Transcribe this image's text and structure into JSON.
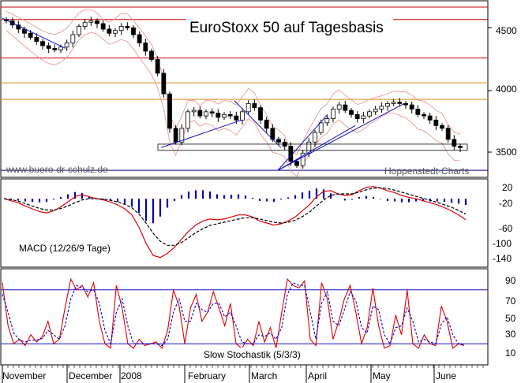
{
  "chart_data": [
    {
      "type": "candlestick",
      "title": "EuroStoxx 50 auf Tagesbasis",
      "y_ticks": [
        "4500",
        "4000",
        "3500"
      ],
      "ylim": [
        3350,
        4620
      ],
      "watermark_left": "www.buero-dr-schulz.de",
      "watermark_right": "Hoppenstedt-Charts",
      "horizontal_levels": [
        {
          "value": 4580,
          "color": "#c80000"
        },
        {
          "value": 4490,
          "color": "#c80000"
        },
        {
          "value": 4210,
          "color": "#c80000"
        },
        {
          "value": 4030,
          "color": "#e08a1e"
        },
        {
          "value": 3910,
          "color": "#e08a1e"
        },
        {
          "value": 3395,
          "color": "#000080"
        }
      ],
      "x_labels": [
        "November",
        "December",
        "2008",
        "February",
        "March",
        "April",
        "May",
        "June"
      ],
      "close_approx": [
        4480,
        4450,
        4420,
        4390,
        4360,
        4330,
        4300,
        4280,
        4270,
        4290,
        4320,
        4380,
        4440,
        4470,
        4480,
        4460,
        4420,
        4390,
        4410,
        4440,
        4430,
        4380,
        4320,
        4260,
        4200,
        4100,
        3950,
        3700,
        3600,
        3700,
        3820,
        3830,
        3790,
        3820,
        3810,
        3780,
        3800,
        3790,
        3760,
        3820,
        3880,
        3850,
        3760,
        3700,
        3620,
        3600,
        3570,
        3460,
        3430,
        3520,
        3600,
        3670,
        3740,
        3770,
        3840,
        3870,
        3830,
        3800,
        3770,
        3790,
        3820,
        3840,
        3860,
        3880,
        3890,
        3880,
        3870,
        3840,
        3800,
        3790,
        3760,
        3720,
        3700,
        3620,
        3570,
        3560
      ]
    },
    {
      "type": "line",
      "label": "MACD (12/26/9 Tage)",
      "y_ticks": [
        "20",
        "-20",
        "-60",
        "-100",
        "-140"
      ],
      "ylim": [
        -165,
        45
      ],
      "series": [
        {
          "color": "#e00000",
          "values": [
            0,
            -5,
            -10,
            -18,
            -25,
            -32,
            -35,
            -30,
            -20,
            -8,
            5,
            10,
            5,
            0,
            -3,
            -8,
            -15,
            -25,
            -40,
            -70,
            -110,
            -140,
            -145,
            -135,
            -120,
            -100,
            -80,
            -65,
            -55,
            -50,
            -52,
            -50,
            -45,
            -40,
            -40,
            -45,
            -55,
            -60,
            -65,
            -62,
            -55,
            -45,
            -30,
            -15,
            5,
            18,
            20,
            12,
            8,
            10,
            20,
            28,
            30,
            26,
            20,
            15,
            8,
            3,
            0,
            -5,
            -10,
            -15,
            -22,
            -30,
            -40,
            -52
          ]
        },
        {
          "color": "#000000",
          "values": [
            0,
            -2,
            -6,
            -12,
            -18,
            -24,
            -28,
            -28,
            -24,
            -18,
            -10,
            -3,
            0,
            0,
            -1,
            -4,
            -8,
            -14,
            -22,
            -38,
            -60,
            -85,
            -105,
            -115,
            -115,
            -108,
            -96,
            -84,
            -74,
            -66,
            -62,
            -58,
            -54,
            -50,
            -47,
            -47,
            -50,
            -54,
            -58,
            -60,
            -58,
            -53,
            -44,
            -33,
            -18,
            -3,
            8,
            12,
            12,
            12,
            16,
            22,
            26,
            27,
            25,
            21,
            16,
            11,
            6,
            1,
            -4,
            -9,
            -15,
            -21,
            -29,
            -38
          ]
        }
      ],
      "histogram_color": "#0000b0"
    },
    {
      "type": "line",
      "label": "Slow Stochastik (5/3/3)",
      "y_ticks": [
        "90",
        "70",
        "50",
        "30",
        "10"
      ],
      "ylim": [
        0,
        100
      ],
      "reference_lines": [
        80,
        20
      ],
      "series": [
        {
          "color": "#e00000",
          "values": [
            88,
            40,
            20,
            25,
            18,
            30,
            22,
            28,
            45,
            20,
            25,
            60,
            92,
            80,
            85,
            72,
            88,
            45,
            20,
            15,
            85,
            60,
            20,
            15,
            25,
            18,
            20,
            22,
            15,
            35,
            80,
            62,
            20,
            60,
            75,
            45,
            55,
            78,
            60,
            40,
            65,
            20,
            15,
            25,
            18,
            45,
            22,
            38,
            15,
            55,
            92,
            85,
            82,
            90,
            25,
            18,
            88,
            70,
            25,
            45,
            70,
            85,
            55,
            20,
            38,
            82,
            40,
            15,
            18,
            52,
            30,
            80,
            20,
            15,
            30,
            20,
            18,
            62,
            45,
            15,
            20,
            18
          ]
        },
        {
          "color": "#0000d0",
          "values": [
            75,
            55,
            32,
            24,
            22,
            24,
            24,
            26,
            35,
            30,
            25,
            40,
            70,
            85,
            82,
            78,
            80,
            65,
            35,
            20,
            55,
            70,
            40,
            20,
            20,
            20,
            20,
            20,
            18,
            25,
            55,
            70,
            45,
            45,
            65,
            58,
            55,
            65,
            65,
            50,
            55,
            40,
            22,
            20,
            20,
            30,
            28,
            32,
            25,
            38,
            75,
            88,
            85,
            85,
            55,
            25,
            65,
            78,
            45,
            40,
            58,
            78,
            68,
            38,
            32,
            62,
            58,
            30,
            20,
            38,
            40,
            60,
            45,
            22,
            25,
            22,
            20,
            42,
            50,
            30,
            20,
            19
          ]
        }
      ]
    }
  ]
}
